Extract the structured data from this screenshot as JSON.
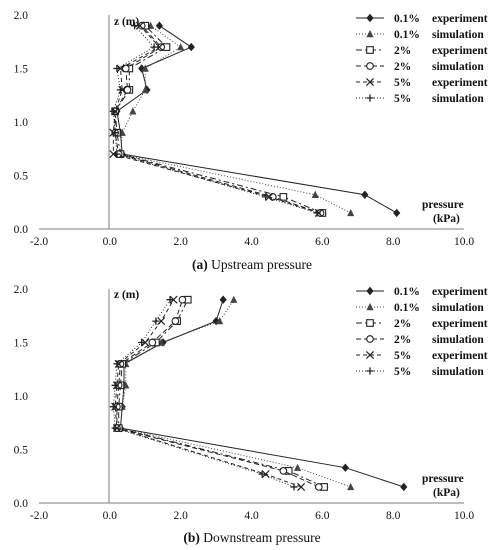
{
  "series_styles": [
    {
      "name": "0.1%",
      "role": "experiment",
      "color": "#222222",
      "dash": "",
      "marker": "diamond"
    },
    {
      "name": "0.1%",
      "role": "simulation",
      "color": "#444444",
      "dash": "1,2",
      "marker": "triangle"
    },
    {
      "name": "2%",
      "role": "experiment",
      "color": "#222222",
      "dash": "6,3,2,3",
      "marker": "square"
    },
    {
      "name": "2%",
      "role": "simulation",
      "color": "#222222",
      "dash": "5,3",
      "marker": "circle"
    },
    {
      "name": "5%",
      "role": "experiment",
      "color": "#222222",
      "dash": "4,3",
      "marker": "x"
    },
    {
      "name": "5%",
      "role": "simulation",
      "color": "#222222",
      "dash": "1,2",
      "marker": "plus"
    }
  ],
  "chart_data": [
    {
      "type": "line",
      "caption_label": "(a)",
      "caption_text": " Upstream pressure",
      "ylabel": "z (m)",
      "xlabel_line1": "pressure",
      "xlabel_line2": "(kPa)",
      "xlim": [
        -2,
        10
      ],
      "ylim": [
        0,
        2
      ],
      "xticks": [
        "-2.0",
        "0.0",
        "2.0",
        "4.0",
        "6.0",
        "8.0",
        "10.0"
      ],
      "yticks": [
        "0.0",
        "0.5",
        "1.0",
        "1.5",
        "2.0"
      ],
      "grid": false,
      "legend_position": "top-right",
      "series": [
        {
          "name": "0.1%",
          "label": "experiment",
          "points": [
            [
              8.1,
              0.15
            ],
            [
              7.2,
              0.32
            ],
            [
              0.35,
              0.7
            ],
            [
              0.3,
              0.9
            ],
            [
              0.2,
              1.1
            ],
            [
              1.05,
              1.3
            ],
            [
              0.9,
              1.5
            ],
            [
              2.3,
              1.7
            ],
            [
              1.4,
              1.9
            ]
          ]
        },
        {
          "name": "0.1%",
          "label": "simulation",
          "points": [
            [
              6.8,
              0.15
            ],
            [
              5.8,
              0.32
            ],
            [
              0.3,
              0.7
            ],
            [
              0.35,
              0.9
            ],
            [
              0.65,
              1.1
            ],
            [
              1.0,
              1.3
            ],
            [
              1.0,
              1.5
            ],
            [
              2.0,
              1.7
            ],
            [
              1.15,
              1.9
            ]
          ]
        },
        {
          "name": "2%",
          "label": "experiment",
          "points": [
            [
              6.0,
              0.15
            ],
            [
              4.9,
              0.3
            ],
            [
              0.3,
              0.7
            ],
            [
              0.2,
              0.9
            ],
            [
              0.15,
              1.1
            ],
            [
              0.55,
              1.3
            ],
            [
              0.55,
              1.5
            ],
            [
              1.6,
              1.7
            ],
            [
              1.0,
              1.9
            ]
          ]
        },
        {
          "name": "2%",
          "label": "simulation",
          "points": [
            [
              5.95,
              0.15
            ],
            [
              4.6,
              0.3
            ],
            [
              0.25,
              0.7
            ],
            [
              0.15,
              0.9
            ],
            [
              0.15,
              1.1
            ],
            [
              0.5,
              1.3
            ],
            [
              0.45,
              1.5
            ],
            [
              1.45,
              1.7
            ],
            [
              0.9,
              1.9
            ]
          ]
        },
        {
          "name": "5%",
          "label": "experiment",
          "points": [
            [
              5.9,
              0.15
            ],
            [
              4.5,
              0.3
            ],
            [
              0.1,
              0.7
            ],
            [
              0.1,
              0.9
            ],
            [
              0.15,
              1.1
            ],
            [
              0.35,
              1.3
            ],
            [
              0.3,
              1.5
            ],
            [
              1.4,
              1.7
            ],
            [
              0.85,
              1.9
            ]
          ]
        },
        {
          "name": "5%",
          "label": "simulation",
          "points": [
            [
              5.85,
              0.15
            ],
            [
              4.4,
              0.3
            ],
            [
              0.2,
              0.7
            ],
            [
              0.15,
              0.9
            ],
            [
              0.1,
              1.1
            ],
            [
              0.3,
              1.3
            ],
            [
              0.2,
              1.5
            ],
            [
              1.25,
              1.7
            ],
            [
              0.7,
              1.9
            ]
          ]
        }
      ]
    },
    {
      "type": "line",
      "caption_label": "(b)",
      "caption_text": " Downstream pressure",
      "ylabel": "z (m)",
      "xlabel_line1": "pressure",
      "xlabel_line2": "(kPa)",
      "xlim": [
        -2,
        10
      ],
      "ylim": [
        0,
        2
      ],
      "xticks": [
        "-2.0",
        "0.0",
        "2.0",
        "4.0",
        "6.0",
        "8.0",
        "10.0"
      ],
      "yticks": [
        "0.0",
        "0.5",
        "1.0",
        "1.5",
        "2.0"
      ],
      "grid": false,
      "legend_position": "top-right",
      "series": [
        {
          "name": "0.1%",
          "label": "experiment",
          "points": [
            [
              8.3,
              0.15
            ],
            [
              6.65,
              0.33
            ],
            [
              0.3,
              0.7
            ],
            [
              0.35,
              0.9
            ],
            [
              0.4,
              1.1
            ],
            [
              0.4,
              1.3
            ],
            [
              1.5,
              1.5
            ],
            [
              3.0,
              1.7
            ],
            [
              3.2,
              1.9
            ]
          ]
        },
        {
          "name": "0.1%",
          "label": "simulation",
          "points": [
            [
              6.8,
              0.15
            ],
            [
              5.3,
              0.33
            ],
            [
              0.3,
              0.7
            ],
            [
              0.35,
              0.9
            ],
            [
              0.45,
              1.1
            ],
            [
              0.45,
              1.3
            ],
            [
              1.45,
              1.5
            ],
            [
              3.1,
              1.7
            ],
            [
              3.5,
              1.9
            ]
          ]
        },
        {
          "name": "2%",
          "label": "experiment",
          "points": [
            [
              6.05,
              0.15
            ],
            [
              5.05,
              0.3
            ],
            [
              0.25,
              0.7
            ],
            [
              0.25,
              0.9
            ],
            [
              0.3,
              1.1
            ],
            [
              0.35,
              1.3
            ],
            [
              1.3,
              1.5
            ],
            [
              1.9,
              1.7
            ],
            [
              2.2,
              1.9
            ]
          ]
        },
        {
          "name": "2%",
          "label": "simulation",
          "points": [
            [
              5.9,
              0.15
            ],
            [
              4.9,
              0.3
            ],
            [
              0.2,
              0.7
            ],
            [
              0.2,
              0.9
            ],
            [
              0.25,
              1.1
            ],
            [
              0.3,
              1.3
            ],
            [
              1.2,
              1.5
            ],
            [
              1.85,
              1.7
            ],
            [
              2.05,
              1.9
            ]
          ]
        },
        {
          "name": "5%",
          "label": "experiment",
          "points": [
            [
              5.4,
              0.15
            ],
            [
              4.4,
              0.27
            ],
            [
              0.2,
              0.7
            ],
            [
              0.15,
              0.9
            ],
            [
              0.2,
              1.1
            ],
            [
              0.25,
              1.3
            ],
            [
              1.0,
              1.5
            ],
            [
              1.45,
              1.7
            ],
            [
              1.8,
              1.9
            ]
          ]
        },
        {
          "name": "5%",
          "label": "simulation",
          "points": [
            [
              5.2,
              0.15
            ],
            [
              4.3,
              0.27
            ],
            [
              0.15,
              0.7
            ],
            [
              0.1,
              0.9
            ],
            [
              0.15,
              1.1
            ],
            [
              0.2,
              1.3
            ],
            [
              0.9,
              1.5
            ],
            [
              1.3,
              1.7
            ],
            [
              1.7,
              1.9
            ]
          ]
        }
      ]
    }
  ]
}
